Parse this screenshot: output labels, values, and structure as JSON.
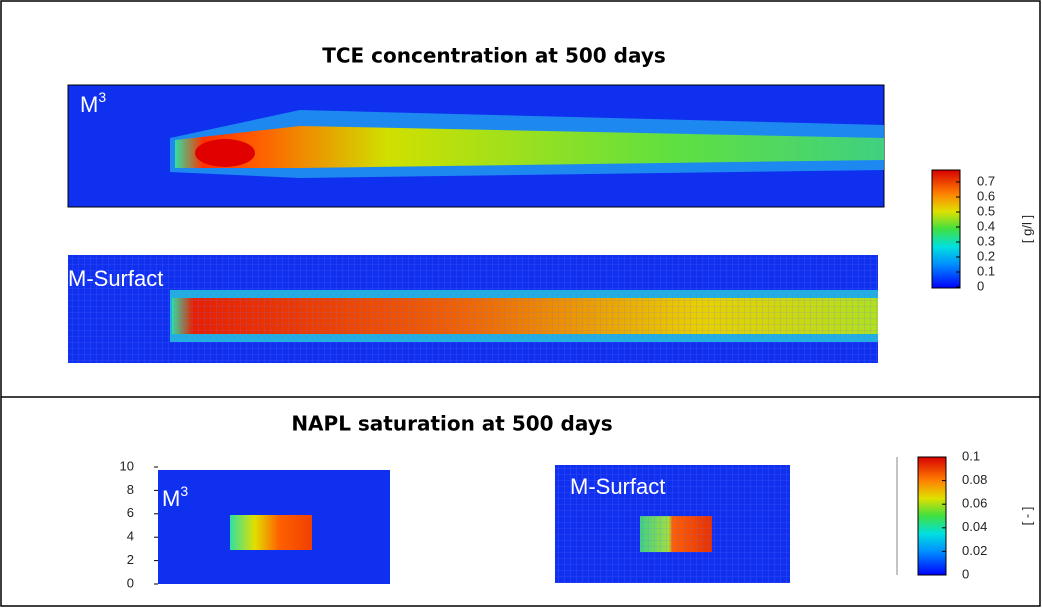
{
  "top_panel": {
    "title": "TCE concentration at 500 days",
    "plots": [
      {
        "label": "M",
        "label_sup": "3"
      },
      {
        "label": "M-Surfact"
      }
    ],
    "colorbar": {
      "lim": [
        0,
        0.78
      ],
      "ticks": [
        0,
        0.1,
        0.2,
        0.3,
        0.4,
        0.5,
        0.6,
        0.7
      ],
      "unit": "[ g/l ]"
    }
  },
  "bottom_panel": {
    "title": "NAPL saturation at 500 days",
    "plots": [
      {
        "label": "M",
        "label_sup": "3",
        "ylim": [
          0,
          10
        ],
        "yticks": [
          0,
          2,
          4,
          6,
          8,
          10
        ]
      },
      {
        "label": "M-Surfact"
      }
    ],
    "colorbar": {
      "lim": [
        0,
        0.1
      ],
      "ticks": [
        0,
        0.02,
        0.04,
        0.06,
        0.08,
        0.1
      ],
      "unit": "[ - ]"
    }
  }
}
